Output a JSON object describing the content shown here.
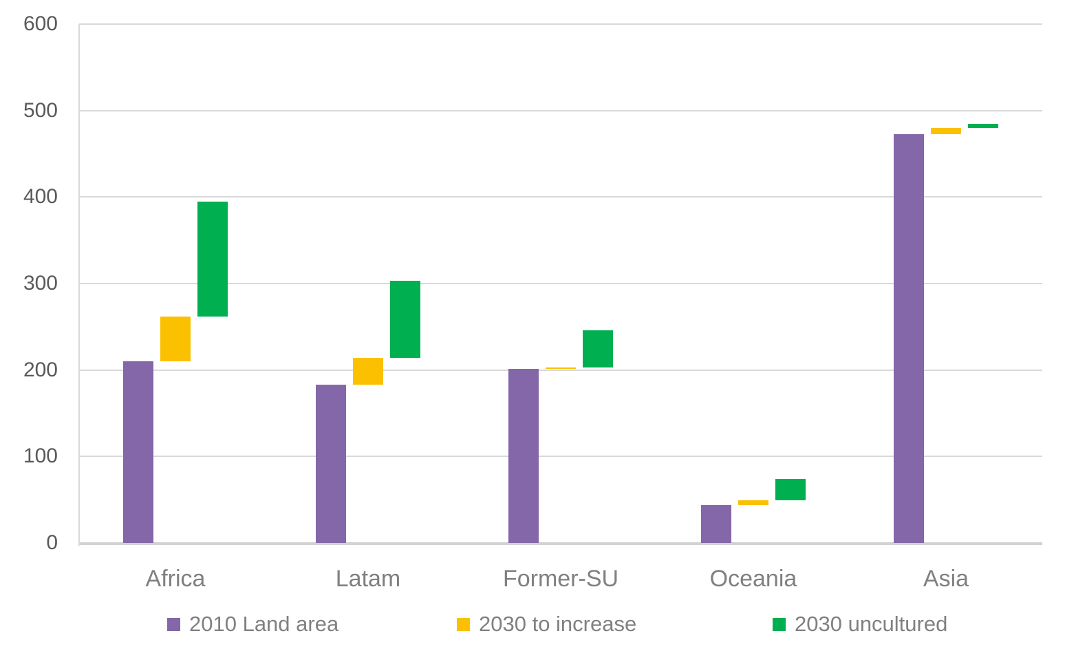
{
  "chart_data": {
    "type": "bar",
    "subtype": "clustered-waterfall-floating-bars",
    "title": "",
    "xlabel": "",
    "ylabel": "",
    "categories": [
      "Africa",
      "Latam",
      "Former-SU",
      "Oceania",
      "Asia"
    ],
    "series": [
      {
        "name": "2010 Land area",
        "color": "#8467A8",
        "segments": [
          [
            0,
            210
          ],
          [
            0,
            183
          ],
          [
            0,
            201
          ],
          [
            0,
            44
          ],
          [
            0,
            473
          ]
        ]
      },
      {
        "name": "2030 to increase",
        "color": "#FBC100",
        "segments": [
          [
            210,
            262
          ],
          [
            183,
            214
          ],
          [
            201,
            203
          ],
          [
            44,
            49
          ],
          [
            473,
            480
          ]
        ]
      },
      {
        "name": "2030 uncultured",
        "color": "#00AF50",
        "segments": [
          [
            262,
            395
          ],
          [
            214,
            303
          ],
          [
            203,
            246
          ],
          [
            49,
            74
          ],
          [
            480,
            485
          ]
        ]
      }
    ],
    "ylim": [
      0,
      600
    ],
    "yticks": [
      0,
      100,
      200,
      300,
      400,
      500,
      600
    ],
    "grid": true,
    "legend_position": "bottom",
    "colors": {
      "gridline": "#d9d9d9",
      "axis_line": "#d2d2d2",
      "ytick_text": "#595959",
      "category_text": "#808080",
      "legend_text": "#808080",
      "background": "#ffffff"
    }
  }
}
